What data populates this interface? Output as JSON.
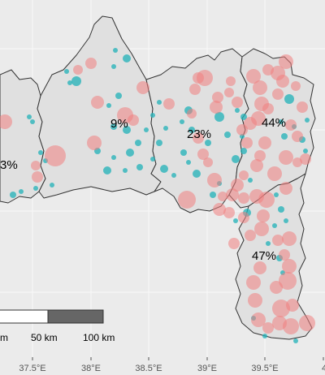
{
  "map": {
    "colors": {
      "panel_bg": "#ebebeb",
      "region_fill": "#e0e0e0",
      "boundary": "#333333",
      "red_points": "#f08080",
      "teal_points": "#20b2b8"
    },
    "zone_labels": [
      {
        "id": "far-west",
        "text": "3%"
      },
      {
        "id": "west",
        "text": "9%"
      },
      {
        "id": "central",
        "text": "23%"
      },
      {
        "id": "east",
        "text": "44%"
      },
      {
        "id": "south-east",
        "text": "47%"
      }
    ],
    "scalebar": {
      "labels": [
        "m",
        "50 km",
        "100 km"
      ]
    },
    "x_axis": {
      "ticks": [
        "37.5°E",
        "38°E",
        "38.5°E",
        "39°E",
        "39.5°E",
        "4"
      ]
    }
  }
}
